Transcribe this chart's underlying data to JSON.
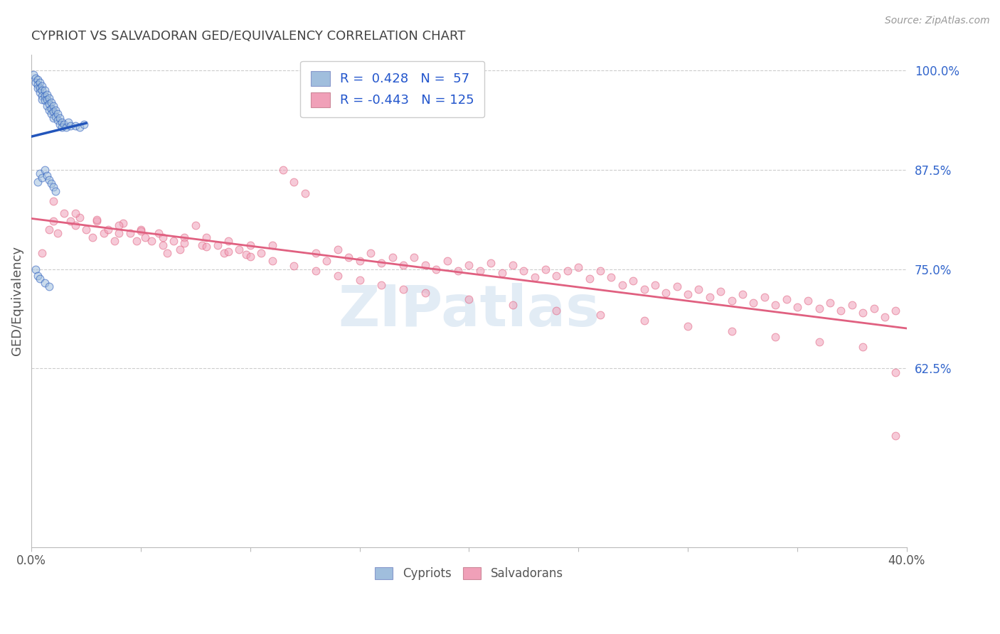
{
  "title": "CYPRIOT VS SALVADORAN GED/EQUIVALENCY CORRELATION CHART",
  "source": "Source: ZipAtlas.com",
  "ylabel": "GED/Equivalency",
  "xlim": [
    0.0,
    0.4
  ],
  "ylim": [
    0.4,
    1.02
  ],
  "yticks_right": [
    1.0,
    0.875,
    0.75,
    0.625
  ],
  "ytick_labels_right": [
    "100.0%",
    "87.5%",
    "75.0%",
    "62.5%"
  ],
  "grid_color": "#cccccc",
  "background_color": "#ffffff",
  "cypriot_color": "#a0bedd",
  "salvadoran_color": "#f0a0b8",
  "cypriot_line_color": "#2255bb",
  "salvadoran_line_color": "#e06080",
  "legend_R_cypriot": "0.428",
  "legend_N_cypriot": "57",
  "legend_R_salvadoran": "-0.443",
  "legend_N_salvadoran": "125",
  "watermark": "ZIPatlas",
  "title_color": "#444444",
  "title_fontsize": 13,
  "axis_label_color": "#555555",
  "tick_color": "#555555",
  "legend_value_color": "#2255cc",
  "dot_size": 60,
  "dot_alpha": 0.55,
  "cypriot_x": [
    0.001,
    0.002,
    0.002,
    0.003,
    0.003,
    0.003,
    0.004,
    0.004,
    0.004,
    0.005,
    0.005,
    0.005,
    0.005,
    0.006,
    0.006,
    0.006,
    0.007,
    0.007,
    0.007,
    0.008,
    0.008,
    0.008,
    0.009,
    0.009,
    0.009,
    0.01,
    0.01,
    0.01,
    0.011,
    0.011,
    0.012,
    0.012,
    0.013,
    0.013,
    0.014,
    0.014,
    0.015,
    0.016,
    0.017,
    0.018,
    0.02,
    0.022,
    0.024,
    0.003,
    0.004,
    0.005,
    0.006,
    0.007,
    0.008,
    0.009,
    0.01,
    0.011,
    0.002,
    0.003,
    0.004,
    0.006,
    0.008
  ],
  "cypriot_y": [
    0.995,
    0.99,
    0.985,
    0.988,
    0.982,
    0.978,
    0.985,
    0.978,
    0.972,
    0.98,
    0.975,
    0.968,
    0.963,
    0.975,
    0.968,
    0.962,
    0.97,
    0.963,
    0.955,
    0.965,
    0.958,
    0.95,
    0.96,
    0.952,
    0.945,
    0.955,
    0.948,
    0.94,
    0.95,
    0.942,
    0.945,
    0.937,
    0.94,
    0.932,
    0.935,
    0.928,
    0.932,
    0.928,
    0.935,
    0.93,
    0.93,
    0.928,
    0.932,
    0.86,
    0.87,
    0.865,
    0.875,
    0.868,
    0.862,
    0.858,
    0.853,
    0.848,
    0.75,
    0.742,
    0.738,
    0.733,
    0.728
  ],
  "salvadoran_x": [
    0.005,
    0.008,
    0.01,
    0.012,
    0.015,
    0.018,
    0.02,
    0.022,
    0.025,
    0.028,
    0.03,
    0.033,
    0.035,
    0.038,
    0.04,
    0.042,
    0.045,
    0.048,
    0.05,
    0.052,
    0.055,
    0.058,
    0.06,
    0.062,
    0.065,
    0.068,
    0.07,
    0.075,
    0.078,
    0.08,
    0.085,
    0.088,
    0.09,
    0.095,
    0.098,
    0.1,
    0.105,
    0.11,
    0.115,
    0.12,
    0.125,
    0.13,
    0.135,
    0.14,
    0.145,
    0.15,
    0.155,
    0.16,
    0.165,
    0.17,
    0.175,
    0.18,
    0.185,
    0.19,
    0.195,
    0.2,
    0.205,
    0.21,
    0.215,
    0.22,
    0.225,
    0.23,
    0.235,
    0.24,
    0.245,
    0.25,
    0.255,
    0.26,
    0.265,
    0.27,
    0.275,
    0.28,
    0.285,
    0.29,
    0.295,
    0.3,
    0.305,
    0.31,
    0.315,
    0.32,
    0.325,
    0.33,
    0.335,
    0.34,
    0.345,
    0.35,
    0.355,
    0.36,
    0.365,
    0.37,
    0.375,
    0.38,
    0.385,
    0.39,
    0.395,
    0.01,
    0.02,
    0.03,
    0.04,
    0.05,
    0.06,
    0.07,
    0.08,
    0.09,
    0.1,
    0.11,
    0.12,
    0.13,
    0.14,
    0.15,
    0.16,
    0.17,
    0.18,
    0.2,
    0.22,
    0.24,
    0.26,
    0.28,
    0.3,
    0.32,
    0.34,
    0.36,
    0.38,
    0.395,
    0.395
  ],
  "salvadoran_y": [
    0.77,
    0.8,
    0.81,
    0.795,
    0.82,
    0.81,
    0.805,
    0.815,
    0.8,
    0.79,
    0.81,
    0.795,
    0.8,
    0.785,
    0.795,
    0.808,
    0.795,
    0.785,
    0.8,
    0.79,
    0.785,
    0.795,
    0.78,
    0.77,
    0.785,
    0.775,
    0.79,
    0.805,
    0.78,
    0.79,
    0.78,
    0.77,
    0.785,
    0.775,
    0.768,
    0.78,
    0.77,
    0.78,
    0.875,
    0.86,
    0.845,
    0.77,
    0.76,
    0.775,
    0.765,
    0.76,
    0.77,
    0.758,
    0.765,
    0.755,
    0.765,
    0.755,
    0.75,
    0.76,
    0.748,
    0.755,
    0.748,
    0.758,
    0.745,
    0.755,
    0.748,
    0.74,
    0.75,
    0.742,
    0.748,
    0.752,
    0.738,
    0.748,
    0.74,
    0.73,
    0.735,
    0.725,
    0.73,
    0.72,
    0.728,
    0.718,
    0.725,
    0.715,
    0.722,
    0.71,
    0.718,
    0.708,
    0.715,
    0.705,
    0.712,
    0.702,
    0.71,
    0.7,
    0.708,
    0.698,
    0.705,
    0.695,
    0.7,
    0.69,
    0.698,
    0.835,
    0.82,
    0.812,
    0.805,
    0.798,
    0.79,
    0.783,
    0.778,
    0.772,
    0.766,
    0.76,
    0.754,
    0.748,
    0.742,
    0.736,
    0.73,
    0.725,
    0.72,
    0.712,
    0.705,
    0.698,
    0.692,
    0.685,
    0.678,
    0.672,
    0.665,
    0.658,
    0.652,
    0.62,
    0.54
  ]
}
